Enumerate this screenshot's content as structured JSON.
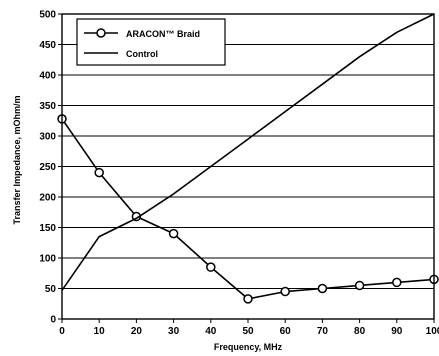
{
  "chart_data": {
    "type": "line",
    "xlabel": "Frequency, MHz",
    "ylabel": "Transfer Impedance, mOhm/m",
    "xlim": [
      0,
      100
    ],
    "ylim": [
      0,
      500
    ],
    "x_ticks": [
      "0",
      "10",
      "20",
      "30",
      "40",
      "50",
      "60",
      "70",
      "80",
      "90",
      "100"
    ],
    "y_ticks": [
      "0",
      "50",
      "100",
      "150",
      "200",
      "250",
      "300",
      "350",
      "400",
      "450",
      "500"
    ],
    "grid": "horizontal",
    "legend_position": "top-left",
    "x": [
      0,
      10,
      20,
      30,
      40,
      50,
      60,
      70,
      80,
      90,
      100
    ],
    "series": [
      {
        "name": "ARACON™ Braid",
        "marker": "circle",
        "values": [
          328,
          240,
          168,
          140,
          85,
          33,
          45,
          50,
          55,
          60,
          65
        ]
      },
      {
        "name": "Control",
        "marker": "none",
        "values": [
          47,
          135,
          165,
          205,
          250,
          295,
          340,
          385,
          430,
          470,
          500
        ]
      }
    ]
  }
}
